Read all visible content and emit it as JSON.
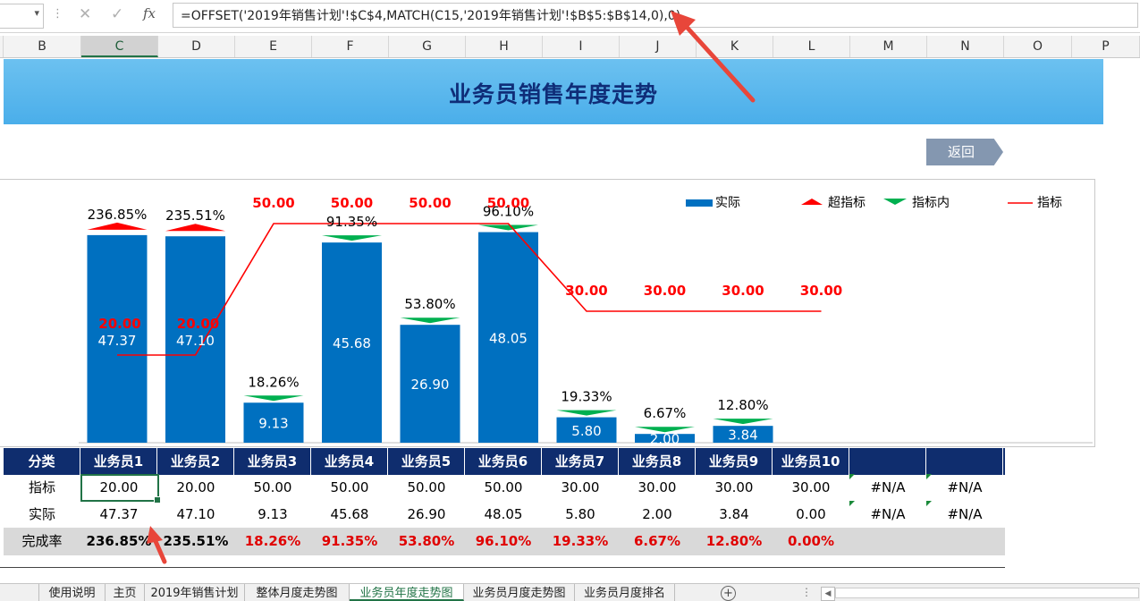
{
  "formula_bar": {
    "name_box": "",
    "cancel_icon": "close-icon",
    "enter_icon": "check-icon",
    "fx_label": "fx",
    "formula": "=OFFSET('2019年销售计划'!$C$4,MATCH(C15,'2019年销售计划'!$B$5:$B$14,0),0)"
  },
  "columns": [
    "B",
    "C",
    "D",
    "E",
    "F",
    "G",
    "H",
    "I",
    "J",
    "K",
    "L",
    "M",
    "N",
    "O",
    "P"
  ],
  "selected_column": "C",
  "banner": {
    "title": "业务员销售年度走势"
  },
  "return_button": {
    "label": "返回"
  },
  "table": {
    "header_label": "分类",
    "target_label": "指标",
    "actual_label": "实际",
    "rate_label": "完成率",
    "salespeople": [
      "业务员1",
      "业务员2",
      "业务员3",
      "业务员4",
      "业务员5",
      "业务员6",
      "业务员7",
      "业务员8",
      "业务员9",
      "业务员10"
    ],
    "targets": [
      "20.00",
      "20.00",
      "50.00",
      "50.00",
      "50.00",
      "50.00",
      "30.00",
      "30.00",
      "30.00",
      "30.00",
      "#N/A",
      "#N/A"
    ],
    "actuals": [
      "47.37",
      "47.10",
      "9.13",
      "45.68",
      "26.90",
      "48.05",
      "5.80",
      "2.00",
      "3.84",
      "0.00",
      "#N/A",
      "#N/A"
    ],
    "rates": [
      "236.85%",
      "235.51%",
      "18.26%",
      "91.35%",
      "53.80%",
      "96.10%",
      "19.33%",
      "6.67%",
      "12.80%",
      "0.00%"
    ]
  },
  "chart_data": {
    "type": "bar",
    "categories": [
      "业务员1",
      "业务员2",
      "业务员3",
      "业务员4",
      "业务员5",
      "业务员6",
      "业务员7",
      "业务员8",
      "业务员9",
      "业务员10"
    ],
    "series": [
      {
        "name": "实际",
        "kind": "bar",
        "values": [
          47.37,
          47.1,
          9.13,
          45.68,
          26.9,
          48.05,
          5.8,
          2.0,
          3.84,
          0.0
        ]
      },
      {
        "name": "指标",
        "kind": "line",
        "values": [
          20.0,
          20.0,
          50.0,
          50.0,
          50.0,
          50.0,
          30.0,
          30.0,
          30.0,
          30.0
        ]
      }
    ],
    "completion_rate_labels": [
      "236.85%",
      "235.51%",
      "18.26%",
      "91.35%",
      "53.80%",
      "96.10%",
      "19.33%",
      "6.67%",
      "12.80%",
      ""
    ],
    "exceed_flags": [
      true,
      true,
      false,
      false,
      false,
      false,
      false,
      false,
      false,
      false
    ],
    "target_labels": [
      "20.00",
      "20.00",
      "50.00",
      "50.00",
      "50.00",
      "50.00",
      "30.00",
      "30.00",
      "30.00",
      "30.00"
    ],
    "actual_labels": [
      "47.37",
      "47.10",
      "9.13",
      "45.68",
      "26.90",
      "48.05",
      "5.80",
      "2.00",
      "3.84",
      ""
    ],
    "legend": [
      "实际",
      "超指标",
      "指标内",
      "指标"
    ],
    "legend_position": "top-right",
    "ylim": [
      0,
      55
    ],
    "grid": false,
    "colors": {
      "bar": "#0070c0",
      "exceed": "#ff0000",
      "within": "#00b050",
      "target_line": "#ff0000"
    }
  },
  "sheet_tabs": [
    "使用说明",
    "主页",
    "2019年销售计划",
    "整体月度走势图",
    "业务员年度走势图",
    "业务员月度走势图",
    "业务员月度排名"
  ],
  "active_sheet": "业务员年度走势图"
}
